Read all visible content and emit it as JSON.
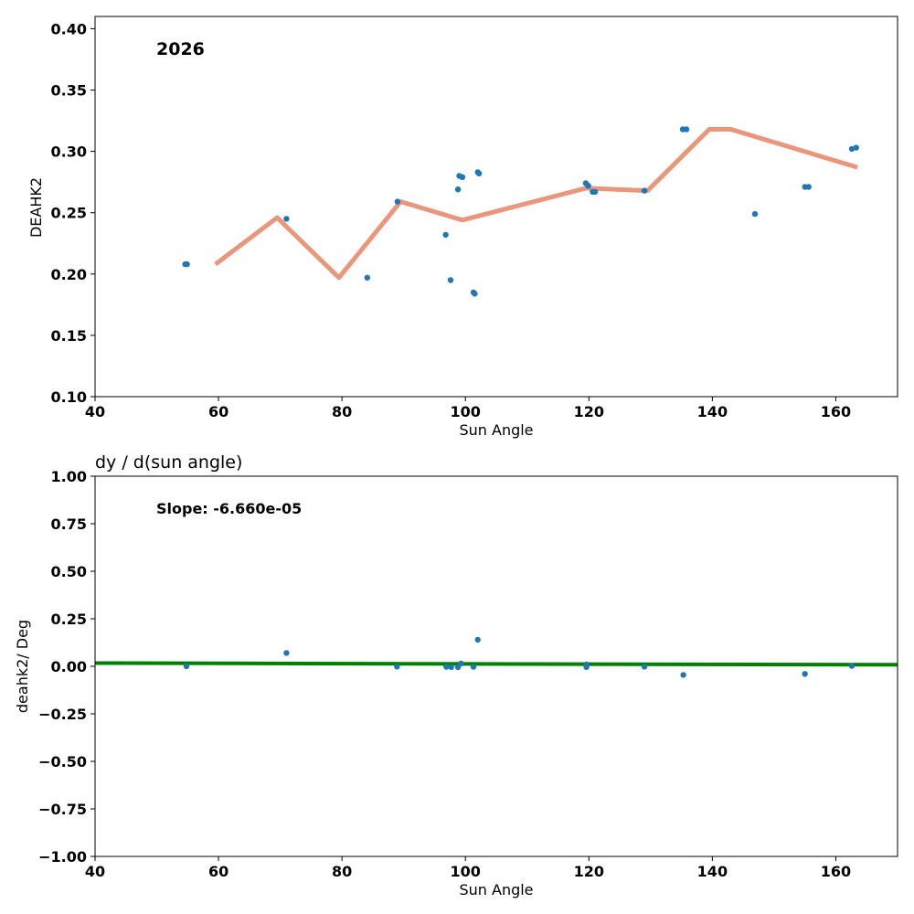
{
  "chart_data": [
    {
      "type": "scatter",
      "annotation": "2026",
      "xlabel": "Sun Angle",
      "ylabel": "DEAHK2",
      "xlim": [
        40,
        170
      ],
      "ylim": [
        0.1,
        0.41
      ],
      "xticks": [
        40,
        60,
        80,
        100,
        120,
        140,
        160
      ],
      "yticks": [
        0.1,
        0.15,
        0.2,
        0.25,
        0.3,
        0.35,
        0.4
      ],
      "ytick_labels": [
        "0.10",
        "0.15",
        "0.20",
        "0.25",
        "0.30",
        "0.35",
        "0.40"
      ],
      "grid": false,
      "series": [
        {
          "kind": "scatter",
          "color": "#1f77b4",
          "points": [
            [
              54.6,
              0.208
            ],
            [
              54.9,
              0.208
            ],
            [
              71.0,
              0.245
            ],
            [
              84.1,
              0.197
            ],
            [
              89.0,
              0.259
            ],
            [
              96.8,
              0.232
            ],
            [
              97.6,
              0.195
            ],
            [
              98.8,
              0.269
            ],
            [
              99.0,
              0.28
            ],
            [
              99.5,
              0.279
            ],
            [
              101.3,
              0.185
            ],
            [
              101.5,
              0.184
            ],
            [
              102.0,
              0.283
            ],
            [
              102.2,
              0.282
            ],
            [
              119.5,
              0.274
            ],
            [
              119.9,
              0.272
            ],
            [
              120.6,
              0.267
            ],
            [
              121.0,
              0.267
            ],
            [
              129.0,
              0.268
            ],
            [
              135.2,
              0.318
            ],
            [
              135.8,
              0.318
            ],
            [
              146.9,
              0.249
            ],
            [
              155.0,
              0.271
            ],
            [
              155.6,
              0.271
            ],
            [
              162.6,
              0.302
            ],
            [
              163.3,
              0.303
            ]
          ]
        },
        {
          "kind": "line",
          "color": "#e9967a",
          "points": [
            [
              59.5,
              0.208
            ],
            [
              69.5,
              0.246
            ],
            [
              79.5,
              0.197
            ],
            [
              89.5,
              0.259
            ],
            [
              99.5,
              0.244
            ],
            [
              119.5,
              0.27
            ],
            [
              129.5,
              0.268
            ],
            [
              139.5,
              0.318
            ],
            [
              143.0,
              0.318
            ],
            [
              163.5,
              0.287
            ]
          ]
        }
      ]
    },
    {
      "type": "scatter",
      "title": "dy / d(sun angle)",
      "annotation": "Slope: -6.660e-05",
      "xlabel": "Sun Angle",
      "ylabel": "deahk2/ Deg",
      "xlim": [
        40,
        170
      ],
      "ylim": [
        -1.0,
        1.0
      ],
      "xticks": [
        40,
        60,
        80,
        100,
        120,
        140,
        160
      ],
      "yticks": [
        -1.0,
        -0.75,
        -0.5,
        -0.25,
        0.0,
        0.25,
        0.5,
        0.75,
        1.0
      ],
      "ytick_labels": [
        "−1.00",
        "−0.75",
        "−0.50",
        "−0.25",
        "0.00",
        "0.25",
        "0.50",
        "0.75",
        "1.00"
      ],
      "grid": false,
      "series": [
        {
          "kind": "scatter",
          "color": "#1f77b4",
          "points": [
            [
              54.8,
              0.0
            ],
            [
              71.0,
              0.07
            ],
            [
              88.9,
              -0.002
            ],
            [
              96.9,
              -0.003
            ],
            [
              97.7,
              -0.004
            ],
            [
              98.8,
              -0.005
            ],
            [
              99.3,
              0.015
            ],
            [
              101.3,
              -0.003
            ],
            [
              102.0,
              0.14
            ],
            [
              119.6,
              0.01
            ],
            [
              119.6,
              -0.004
            ],
            [
              129.0,
              -0.002
            ],
            [
              135.3,
              -0.045
            ],
            [
              155.0,
              -0.04
            ],
            [
              162.6,
              0.002
            ]
          ]
        },
        {
          "kind": "line",
          "color": "#008000",
          "points": [
            [
              40,
              0.017
            ],
            [
              170,
              0.008
            ]
          ]
        }
      ]
    }
  ]
}
